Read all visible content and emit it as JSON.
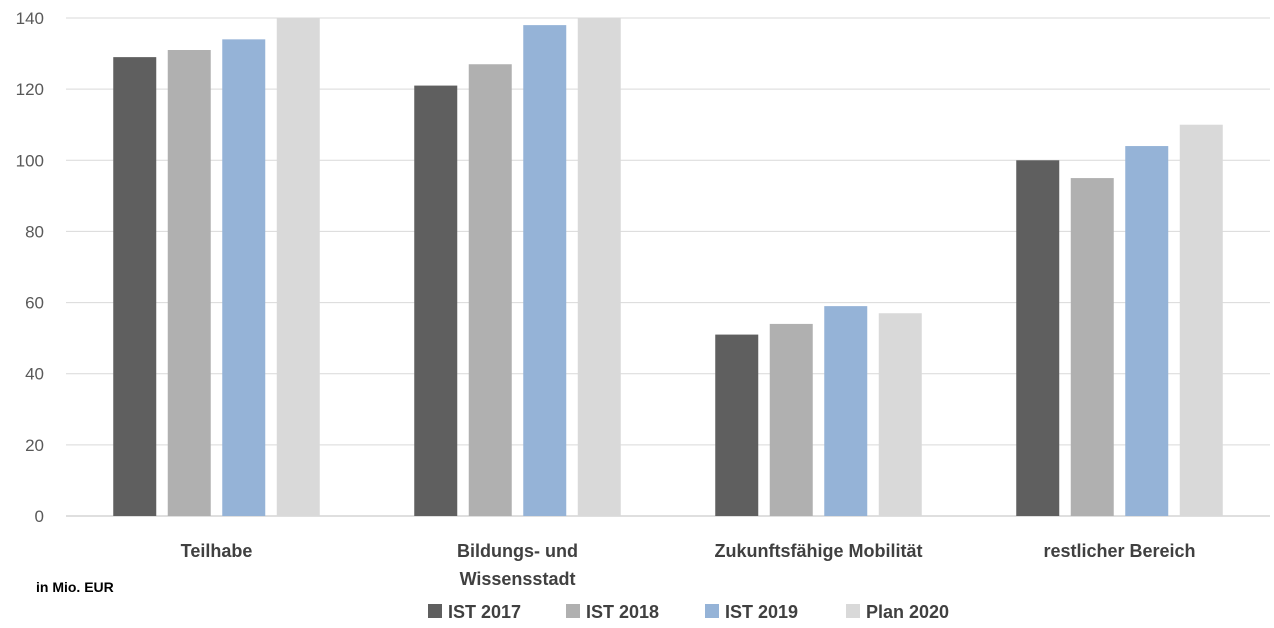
{
  "chart_data": {
    "type": "bar",
    "categories": [
      [
        "Teilhabe"
      ],
      [
        "Bildungs- und",
        "Wissensstadt"
      ],
      [
        "Zukunftsfähige Mobilität"
      ],
      [
        "restlicher Bereich"
      ]
    ],
    "series": [
      {
        "name": "IST 2017",
        "color": "#5f5f5f",
        "values": [
          129,
          121,
          51,
          100
        ]
      },
      {
        "name": "IST 2018",
        "color": "#b0b0b0",
        "values": [
          131,
          127,
          54,
          95
        ]
      },
      {
        "name": "IST 2019",
        "color": "#95b3d7",
        "values": [
          134,
          138,
          59,
          104
        ]
      },
      {
        "name": "Plan 2020",
        "color": "#d9d9d9",
        "values": [
          140,
          140,
          57,
          110
        ]
      }
    ],
    "ylim": [
      0,
      140
    ],
    "yticks": [
      "0",
      "20",
      "40",
      "60",
      "80",
      "100",
      "120",
      "140"
    ],
    "grid": true,
    "legend": "bottom",
    "note": "in Mio. EUR"
  }
}
